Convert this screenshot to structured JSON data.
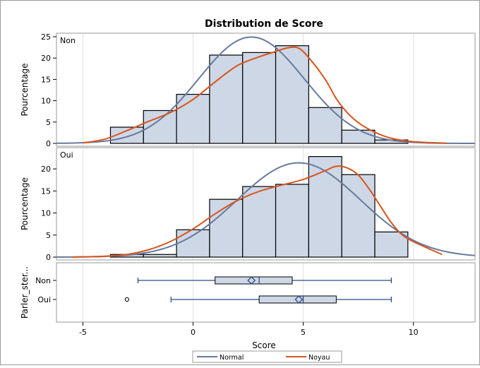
{
  "chart_data": {
    "type": "histogram",
    "title": "Distribution de Score",
    "xlabel": "Score",
    "xlim": [
      -6.2,
      12.8
    ],
    "x_ticks": [
      -5,
      0,
      5,
      10
    ],
    "bin_width": 1.5,
    "bin_left_edges": [
      -3.75,
      -2.25,
      -0.75,
      0.75,
      2.25,
      3.75,
      5.25,
      6.75,
      8.25
    ],
    "panels": [
      {
        "group": "Non",
        "ylabel": "Pourcentage",
        "ylim": [
          0,
          25.5
        ],
        "y_ticks": [
          0,
          5,
          10,
          15,
          20,
          25
        ],
        "percentages": [
          3.8,
          7.7,
          11.5,
          20.7,
          21.3,
          22.9,
          8.4,
          3.1,
          0.8
        ],
        "normal": {
          "mean": 2.65,
          "sd": 2.4
        },
        "kernel": [
          [
            -5.0,
            0.1
          ],
          [
            -4.0,
            1.0
          ],
          [
            -3.0,
            3.0
          ],
          [
            -2.0,
            5.2
          ],
          [
            -1.0,
            7.3
          ],
          [
            0.0,
            10.3
          ],
          [
            1.0,
            14.4
          ],
          [
            2.0,
            18.2
          ],
          [
            3.0,
            20.3
          ],
          [
            3.6,
            21.3
          ],
          [
            4.3,
            22.4
          ],
          [
            4.8,
            22.3
          ],
          [
            5.3,
            19.8
          ],
          [
            6.0,
            15.0
          ],
          [
            6.5,
            10.5
          ],
          [
            7.0,
            7.2
          ],
          [
            7.6,
            4.5
          ],
          [
            8.3,
            2.5
          ],
          [
            9.0,
            1.2
          ],
          [
            10.0,
            0.4
          ],
          [
            11.5,
            0.05
          ]
        ]
      },
      {
        "group": "Oui",
        "ylabel": "Pourcentage",
        "ylim": [
          0,
          24.5
        ],
        "y_ticks": [
          0,
          5,
          10,
          15,
          20
        ],
        "percentages": [
          0.6,
          0.6,
          6.2,
          13.1,
          16.0,
          16.5,
          22.8,
          18.7,
          5.7
        ],
        "normal": {
          "mean": 4.8,
          "sd": 2.8
        },
        "kernel": [
          [
            -5.5,
            0.0
          ],
          [
            -4.0,
            0.2
          ],
          [
            -3.0,
            0.6
          ],
          [
            -2.0,
            1.7
          ],
          [
            -1.0,
            3.6
          ],
          [
            0.0,
            6.4
          ],
          [
            1.0,
            9.8
          ],
          [
            2.0,
            12.8
          ],
          [
            3.0,
            14.9
          ],
          [
            4.0,
            16.3
          ],
          [
            5.0,
            17.6
          ],
          [
            6.0,
            19.6
          ],
          [
            6.5,
            20.6
          ],
          [
            7.0,
            20.2
          ],
          [
            7.5,
            18.6
          ],
          [
            8.0,
            15.4
          ],
          [
            8.5,
            11.6
          ],
          [
            9.0,
            7.8
          ],
          [
            9.5,
            5.0
          ],
          [
            10.0,
            3.5
          ],
          [
            10.8,
            1.7
          ],
          [
            11.3,
            0.6
          ]
        ]
      }
    ],
    "boxplot": {
      "ylabel": "Parler_ster...",
      "groups": [
        {
          "name": "Non",
          "min": -2.5,
          "q1": 1.0,
          "median": 3.0,
          "q3": 4.5,
          "max": 9.0,
          "mean": 2.65,
          "outliers": []
        },
        {
          "name": "Oui",
          "min": -1.0,
          "q1": 3.0,
          "median": 5.0,
          "q3": 6.5,
          "max": 9.0,
          "mean": 4.8,
          "outliers": [
            -3.0
          ]
        }
      ]
    },
    "legend": {
      "placement": "bottom",
      "entries": [
        "Normal",
        "Noyau"
      ]
    },
    "colors": {
      "bar_fill": "#cdd7e6",
      "bar_stroke": "#000000",
      "normal": "#667a9c",
      "kernel": "#d8541c",
      "box_line": "#2e4a8a",
      "grid": "#e3e3e3"
    }
  }
}
